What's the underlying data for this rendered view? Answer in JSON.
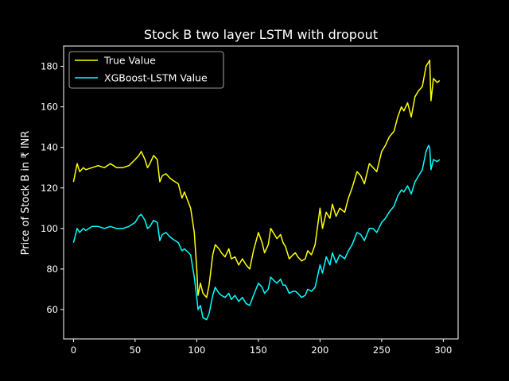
{
  "chart_data": {
    "type": "line",
    "title": "Stock B two layer LSTM with dropout",
    "xlabel": "",
    "ylabel": "Price of Stock B in ₹ INR",
    "xlim": [
      -8,
      312
    ],
    "ylim": [
      45.5,
      190
    ],
    "xticks": [
      0,
      50,
      100,
      150,
      200,
      250,
      300
    ],
    "yticks": [
      60,
      80,
      100,
      120,
      140,
      160,
      180
    ],
    "grid": false,
    "legend_position": "top-left",
    "background": "#000000",
    "series": [
      {
        "name": "True Value",
        "color": "#ffff00",
        "x": [
          0,
          3,
          5,
          8,
          10,
          15,
          20,
          25,
          30,
          35,
          40,
          45,
          50,
          53,
          55,
          58,
          60,
          62,
          65,
          68,
          70,
          72,
          75,
          78,
          80,
          85,
          88,
          90,
          95,
          98,
          100,
          101,
          103,
          105,
          108,
          110,
          113,
          115,
          118,
          120,
          123,
          126,
          128,
          131,
          134,
          137,
          140,
          143,
          146,
          150,
          153,
          155,
          158,
          160,
          163,
          165,
          168,
          170,
          172,
          175,
          178,
          180,
          182,
          185,
          188,
          190,
          193,
          196,
          200,
          202,
          205,
          208,
          210,
          213,
          216,
          220,
          223,
          226,
          230,
          233,
          236,
          240,
          243,
          246,
          250,
          253,
          256,
          260,
          263,
          266,
          268,
          271,
          274,
          277,
          280,
          283,
          286,
          288,
          289,
          290,
          292,
          295,
          297
        ],
        "values": [
          123,
          132,
          128,
          130,
          129,
          130,
          131,
          130,
          132,
          130,
          130,
          131,
          134,
          136,
          138,
          134,
          130,
          132,
          136,
          134,
          123,
          126,
          127,
          125,
          124,
          122,
          115,
          118,
          110,
          98,
          80,
          67,
          73,
          68,
          66,
          72,
          87,
          92,
          90,
          88,
          86,
          90,
          85,
          86,
          82,
          85,
          82,
          80,
          89,
          98,
          93,
          88,
          92,
          100,
          97,
          95,
          97,
          93,
          91,
          85,
          87,
          88,
          86,
          84,
          85,
          89,
          87,
          92,
          110,
          100,
          108,
          105,
          112,
          106,
          110,
          108,
          115,
          120,
          128,
          126,
          122,
          132,
          130,
          128,
          138,
          141,
          145,
          148,
          155,
          160,
          158,
          162,
          155,
          165,
          168,
          170,
          180,
          182,
          183,
          163,
          174,
          172,
          173
        ]
      },
      {
        "name": "XGBoost-LSTM Value",
        "color": "#00ffff",
        "x": [
          0,
          3,
          5,
          8,
          10,
          15,
          20,
          25,
          30,
          35,
          40,
          45,
          50,
          53,
          55,
          58,
          60,
          62,
          65,
          68,
          70,
          72,
          75,
          78,
          80,
          85,
          88,
          90,
          95,
          98,
          100,
          101,
          103,
          105,
          108,
          110,
          113,
          115,
          118,
          120,
          123,
          126,
          128,
          131,
          134,
          137,
          140,
          143,
          146,
          150,
          153,
          155,
          158,
          160,
          163,
          165,
          168,
          170,
          172,
          175,
          178,
          180,
          182,
          185,
          188,
          190,
          193,
          196,
          200,
          202,
          205,
          208,
          210,
          213,
          216,
          220,
          223,
          226,
          230,
          233,
          236,
          240,
          243,
          246,
          250,
          253,
          256,
          260,
          263,
          266,
          268,
          271,
          274,
          277,
          280,
          283,
          286,
          288,
          289,
          290,
          292,
          295,
          297
        ],
        "values": [
          93,
          100,
          98,
          100,
          99,
          101,
          101,
          100,
          101,
          100,
          100,
          101,
          103,
          106,
          107,
          104,
          100,
          101,
          104,
          103,
          94,
          97,
          98,
          96,
          95,
          93,
          89,
          90,
          87,
          76,
          66,
          60,
          62,
          56,
          55,
          58,
          67,
          71,
          68,
          67,
          66,
          68,
          65,
          67,
          64,
          66,
          63,
          62,
          67,
          73,
          71,
          68,
          70,
          76,
          74,
          73,
          75,
          72,
          72,
          68,
          69,
          69,
          68,
          66,
          67,
          70,
          69,
          71,
          82,
          78,
          86,
          82,
          88,
          83,
          87,
          85,
          89,
          92,
          98,
          97,
          94,
          100,
          100,
          98,
          103,
          105,
          108,
          111,
          116,
          119,
          118,
          121,
          117,
          123,
          126,
          129,
          138,
          141,
          140,
          129,
          134,
          133,
          134
        ]
      }
    ]
  }
}
